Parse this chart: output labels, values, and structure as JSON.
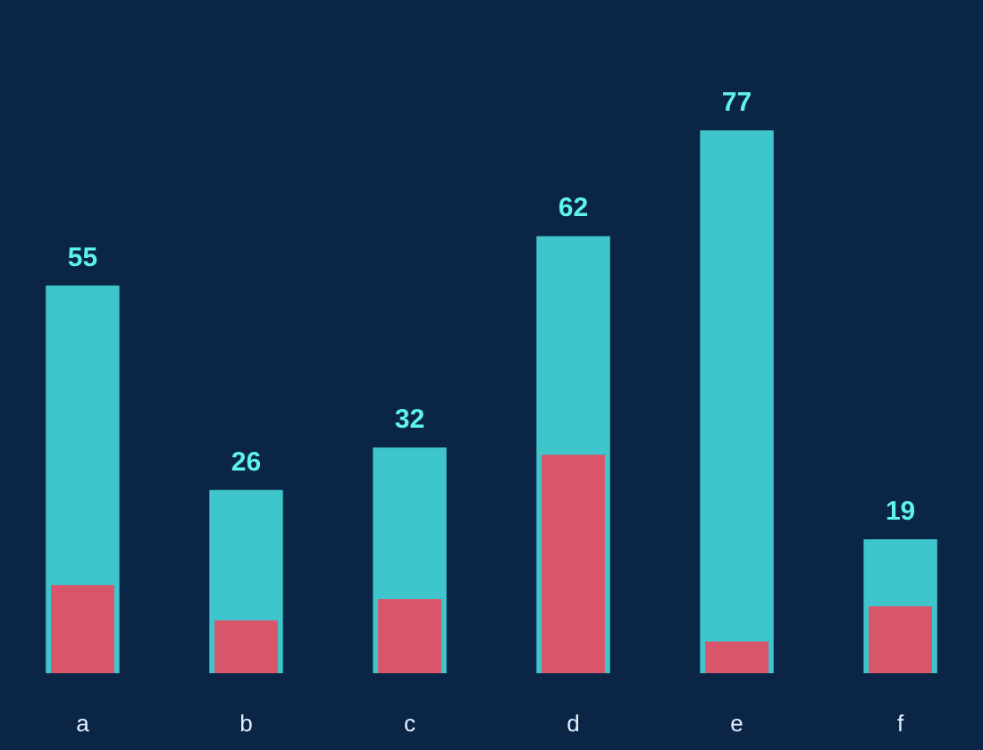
{
  "chart_data": {
    "type": "bar",
    "categories": [
      "a",
      "b",
      "c",
      "d",
      "e",
      "f"
    ],
    "series": [
      {
        "color": "#3fc6cc",
        "values": [
          55,
          26,
          32,
          62,
          77,
          19
        ],
        "value_labels": [
          "55",
          "26",
          "32",
          "62",
          "77",
          "19"
        ]
      },
      {
        "color": "#d9566a",
        "values": [
          12.5,
          7.5,
          10.5,
          31,
          4.5,
          9.5
        ]
      }
    ]
  }
}
